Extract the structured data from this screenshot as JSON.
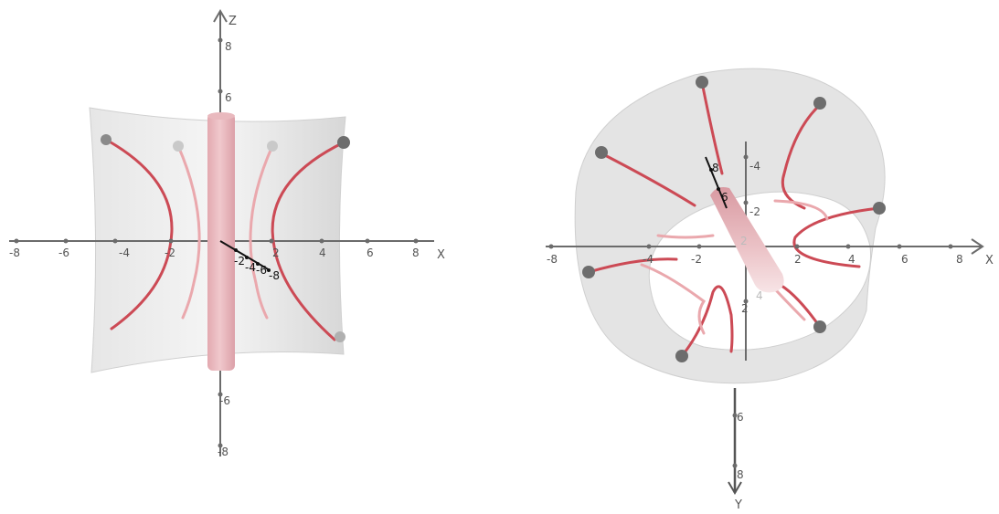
{
  "colors": {
    "axis": "#6b6b6b",
    "sheet": "#e3e3e3",
    "sheet_edge": "#bdbdbd",
    "field_line": "#cc4a55",
    "field_line_faint": "#eaa8ad",
    "cylinder": "#e8b5bb",
    "marker": "#6d6d6d",
    "depth_axis": "#111111"
  },
  "left_view": {
    "x_axis": {
      "name": "X",
      "ticks": [
        "-8",
        "-6",
        "-4",
        "-2",
        "2",
        "4",
        "6",
        "8"
      ]
    },
    "z_axis": {
      "name": "Z",
      "ticks_up": [
        "8",
        "6"
      ],
      "ticks_down": [
        "-6",
        "-8"
      ]
    },
    "depth_axis": {
      "ticks": [
        "-2",
        "-4",
        "-6",
        "-8"
      ]
    }
  },
  "right_view": {
    "x_axis": {
      "name": "X",
      "ticks": [
        "-8",
        "-4",
        "-2",
        "2",
        "4",
        "6",
        "8"
      ]
    },
    "y_axis": {
      "name": "Y",
      "ticks_up": [
        "-4",
        "-2"
      ],
      "ticks_down": [
        "2",
        "6",
        "8"
      ]
    },
    "depth_axis": {
      "ticks": [
        "8",
        "6",
        "4",
        "2"
      ]
    }
  }
}
